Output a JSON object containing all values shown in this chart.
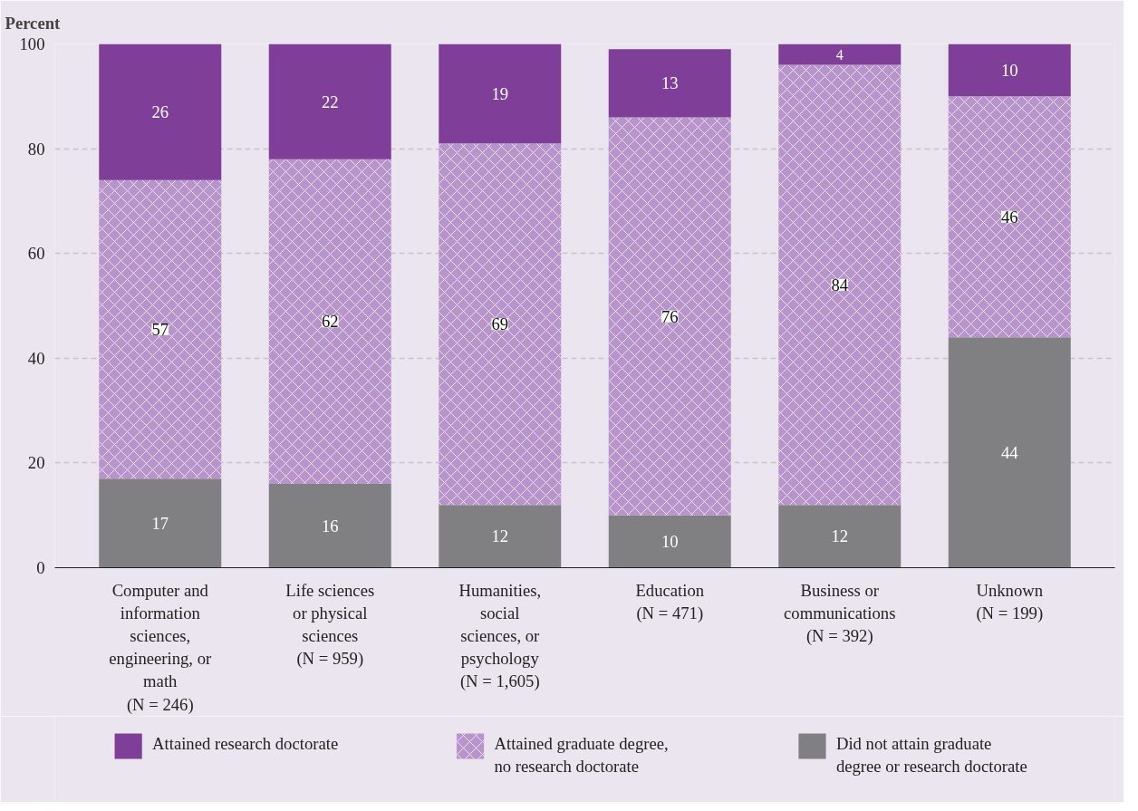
{
  "chart_data": {
    "type": "bar",
    "stacked": true,
    "ylabel": "Percent",
    "categories": [
      "Computer and\ninformation\nsciences,\nengineering, or\nmath\n(N = 246)",
      "Life sciences\nor physical\nsciences\n(N = 959)",
      "Humanities,\nsocial\nsciences, or\npsychology\n(N = 1,605)",
      "Education\n(N = 471)",
      "Business or\ncommunications\n(N = 392)",
      "Unknown\n(N = 199)"
    ],
    "series": [
      {
        "name": "Did not attain graduate\ndegree or research doctorate",
        "color": "#808083",
        "values": [
          17,
          16,
          12,
          10,
          12,
          44
        ]
      },
      {
        "name": "Attained graduate degree,\nno research doctorate",
        "color": "#b894cc",
        "values": [
          57,
          62,
          69,
          76,
          84,
          46
        ]
      },
      {
        "name": "Attained research doctorate",
        "color": "#7f3f98",
        "values": [
          26,
          22,
          19,
          13,
          4,
          10
        ]
      }
    ],
    "ylim": [
      0,
      100
    ],
    "yticks": [
      0,
      20,
      40,
      60,
      80,
      100
    ],
    "grid": "y",
    "legend": "bottom",
    "data_labels": true
  }
}
